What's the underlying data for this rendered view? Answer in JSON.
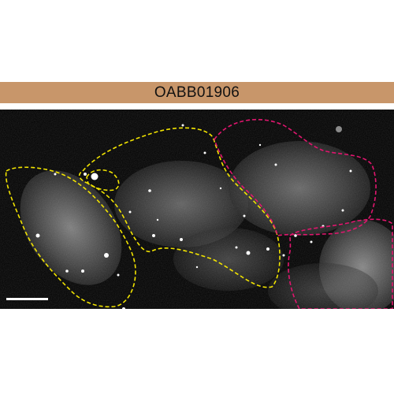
{
  "banner": {
    "label": "OABB01906",
    "color": "#c8966a"
  },
  "micrograph": {
    "description_colors": {
      "background": "#000000",
      "cell_signal": "#cfcfcf",
      "outline_a": "#f2e400",
      "outline_b": "#e0166e",
      "scale_bar": "#ffffff"
    },
    "outline_a_count": 3,
    "outline_b_count": 2
  }
}
